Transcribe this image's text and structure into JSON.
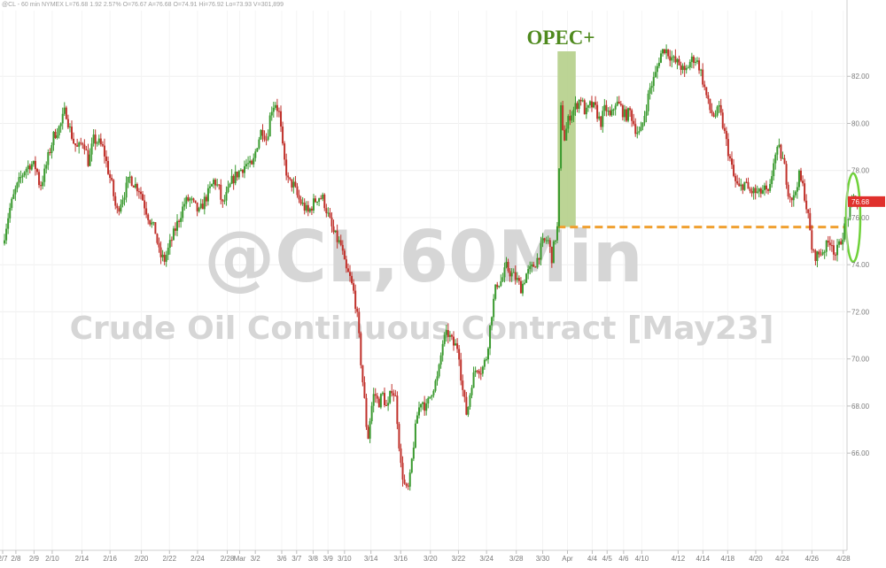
{
  "header": "@CL - 60 min  NYMEX  L=76.68  1.92  2.57%  O=76.67  A=76.68  O=74.91  Hi=76.92  Lo=73.93  V=301,899",
  "watermark": {
    "line1": "@CL,60Min",
    "line2": "Crude Oil Continuous Contract [May23]"
  },
  "annotation": "OPEC+",
  "last_price_label": "76.68",
  "colors": {
    "up": "#3a9a2f",
    "down": "#c0312b",
    "opec_band": "#b5cf8a",
    "reference_line": "#f0a030",
    "highlight_ellipse": "#6fd13a",
    "last_price_bg": "#e0302c"
  },
  "chart_data": {
    "type": "candlestick",
    "title": "",
    "xlabel": "",
    "ylabel": "",
    "ylim": [
      63,
      84
    ],
    "y_ticks": [
      66,
      68,
      70,
      72,
      74,
      76,
      78,
      80,
      82
    ],
    "y_tick_labels": [
      "66.00",
      "68.00",
      "70.00",
      "72.00",
      "74.00",
      "76.00",
      "78.00",
      "80.00",
      "82.00"
    ],
    "x_ticks": [
      "2/7",
      "2/8",
      "2/9",
      "2/10",
      "2/14",
      "2/16",
      "2/20",
      "2/22",
      "2/24",
      "2/28",
      "Mar",
      "3/2",
      "3/6",
      "3/7",
      "3/8",
      "3/9",
      "3/10",
      "3/14",
      "3/16",
      "3/20",
      "3/22",
      "3/24",
      "3/28",
      "3/30",
      "Apr",
      "4/4",
      "4/5",
      "4/6",
      "4/10",
      "4/12",
      "4/14",
      "4/18",
      "4/20",
      "4/24",
      "4/26",
      "4/28"
    ],
    "x_tick_pos": [
      0,
      0.016,
      0.038,
      0.06,
      0.096,
      0.13,
      0.168,
      0.202,
      0.236,
      0.272,
      0.287,
      0.306,
      0.338,
      0.356,
      0.376,
      0.394,
      0.414,
      0.446,
      0.482,
      0.518,
      0.552,
      0.586,
      0.622,
      0.654,
      0.684,
      0.714,
      0.732,
      0.752,
      0.774,
      0.818,
      0.848,
      0.878,
      0.912,
      0.944,
      0.98,
      1.018
    ],
    "price_path": [
      [
        0,
        74.9
      ],
      [
        0.008,
        76.3
      ],
      [
        0.016,
        77.2
      ],
      [
        0.026,
        78.0
      ],
      [
        0.034,
        78.3
      ],
      [
        0.041,
        78.1
      ],
      [
        0.045,
        77.3
      ],
      [
        0.05,
        77.8
      ],
      [
        0.056,
        78.7
      ],
      [
        0.062,
        79.5
      ],
      [
        0.07,
        79.9
      ],
      [
        0.076,
        80.6
      ],
      [
        0.081,
        79.8
      ],
      [
        0.086,
        79.2
      ],
      [
        0.091,
        78.9
      ],
      [
        0.098,
        79.3
      ],
      [
        0.104,
        78.3
      ],
      [
        0.11,
        79.3
      ],
      [
        0.116,
        79.2
      ],
      [
        0.122,
        78.9
      ],
      [
        0.127,
        78.1
      ],
      [
        0.132,
        77.4
      ],
      [
        0.138,
        76.2
      ],
      [
        0.143,
        76.7
      ],
      [
        0.148,
        77.1
      ],
      [
        0.154,
        77.7
      ],
      [
        0.16,
        77.4
      ],
      [
        0.166,
        77.2
      ],
      [
        0.172,
        76.5
      ],
      [
        0.178,
        75.9
      ],
      [
        0.185,
        75.4
      ],
      [
        0.19,
        74.4
      ],
      [
        0.196,
        74.2
      ],
      [
        0.202,
        74.8
      ],
      [
        0.208,
        75.4
      ],
      [
        0.214,
        76.0
      ],
      [
        0.22,
        76.6
      ],
      [
        0.226,
        76.8
      ],
      [
        0.232,
        76.5
      ],
      [
        0.238,
        76.2
      ],
      [
        0.244,
        76.7
      ],
      [
        0.25,
        77.1
      ],
      [
        0.256,
        77.6
      ],
      [
        0.262,
        77.2
      ],
      [
        0.266,
        76.5
      ],
      [
        0.272,
        77.0
      ],
      [
        0.278,
        77.6
      ],
      [
        0.285,
        77.9
      ],
      [
        0.29,
        78.1
      ],
      [
        0.296,
        78.3
      ],
      [
        0.302,
        78.1
      ],
      [
        0.308,
        79.1
      ],
      [
        0.314,
        79.8
      ],
      [
        0.32,
        79.3
      ],
      [
        0.325,
        80.6
      ],
      [
        0.33,
        80.9
      ],
      [
        0.335,
        80.4
      ],
      [
        0.34,
        78.6
      ],
      [
        0.346,
        77.5
      ],
      [
        0.352,
        77.4
      ],
      [
        0.358,
        76.8
      ],
      [
        0.364,
        76.5
      ],
      [
        0.37,
        76.2
      ],
      [
        0.376,
        76.6
      ],
      [
        0.382,
        76.9
      ],
      [
        0.388,
        76.8
      ],
      [
        0.394,
        76.1
      ],
      [
        0.4,
        75.4
      ],
      [
        0.406,
        75.0
      ],
      [
        0.41,
        74.8
      ],
      [
        0.415,
        73.8
      ],
      [
        0.42,
        73.5
      ],
      [
        0.426,
        72.7
      ],
      [
        0.43,
        71.6
      ],
      [
        0.434,
        69.8
      ],
      [
        0.438,
        68.3
      ],
      [
        0.442,
        66.5
      ],
      [
        0.446,
        67.8
      ],
      [
        0.45,
        68.6
      ],
      [
        0.455,
        68.1
      ],
      [
        0.46,
        68.5
      ],
      [
        0.466,
        67.8
      ],
      [
        0.471,
        68.8
      ],
      [
        0.476,
        68.3
      ],
      [
        0.482,
        65.5
      ],
      [
        0.488,
        64.4
      ],
      [
        0.492,
        64.5
      ],
      [
        0.497,
        66.2
      ],
      [
        0.502,
        67.6
      ],
      [
        0.507,
        68.3
      ],
      [
        0.513,
        67.9
      ],
      [
        0.52,
        68.7
      ],
      [
        0.527,
        69.2
      ],
      [
        0.533,
        70.7
      ],
      [
        0.539,
        71.1
      ],
      [
        0.546,
        70.6
      ],
      [
        0.552,
        70.5
      ],
      [
        0.556,
        68.9
      ],
      [
        0.562,
        67.6
      ],
      [
        0.568,
        69.0
      ],
      [
        0.574,
        69.7
      ],
      [
        0.58,
        69.5
      ],
      [
        0.586,
        70.1
      ],
      [
        0.592,
        71.9
      ],
      [
        0.598,
        73.2
      ],
      [
        0.604,
        73.3
      ],
      [
        0.61,
        73.9
      ],
      [
        0.616,
        73.6
      ],
      [
        0.622,
        73.4
      ],
      [
        0.628,
        73.0
      ],
      [
        0.634,
        73.6
      ],
      [
        0.64,
        73.8
      ],
      [
        0.647,
        74.2
      ],
      [
        0.654,
        74.9
      ],
      [
        0.66,
        75.1
      ],
      [
        0.665,
        74.3
      ],
      [
        0.669,
        75.1
      ],
      [
        0.672,
        75.6
      ],
      [
        0.676,
        80.6
      ],
      [
        0.68,
        79.3
      ],
      [
        0.686,
        80.3
      ],
      [
        0.692,
        80.6
      ],
      [
        0.7,
        81.1
      ],
      [
        0.706,
        80.4
      ],
      [
        0.712,
        80.8
      ],
      [
        0.718,
        80.6
      ],
      [
        0.724,
        80.0
      ],
      [
        0.73,
        80.7
      ],
      [
        0.736,
        80.2
      ],
      [
        0.742,
        80.9
      ],
      [
        0.748,
        80.7
      ],
      [
        0.754,
        80.3
      ],
      [
        0.76,
        80.5
      ],
      [
        0.766,
        79.8
      ],
      [
        0.772,
        79.5
      ],
      [
        0.778,
        80.5
      ],
      [
        0.784,
        81.5
      ],
      [
        0.79,
        82.0
      ],
      [
        0.796,
        82.9
      ],
      [
        0.802,
        83.2
      ],
      [
        0.808,
        82.9
      ],
      [
        0.814,
        82.6
      ],
      [
        0.82,
        82.5
      ],
      [
        0.826,
        82.1
      ],
      [
        0.832,
        82.6
      ],
      [
        0.838,
        82.8
      ],
      [
        0.844,
        82.4
      ],
      [
        0.85,
        81.5
      ],
      [
        0.856,
        80.6
      ],
      [
        0.862,
        80.3
      ],
      [
        0.868,
        80.6
      ],
      [
        0.874,
        79.6
      ],
      [
        0.88,
        78.6
      ],
      [
        0.886,
        77.6
      ],
      [
        0.892,
        77.2
      ],
      [
        0.898,
        77.5
      ],
      [
        0.904,
        77.1
      ],
      [
        0.91,
        77.1
      ],
      [
        0.916,
        77.0
      ],
      [
        0.922,
        77.2
      ],
      [
        0.928,
        76.9
      ],
      [
        0.934,
        78.5
      ],
      [
        0.94,
        78.9
      ],
      [
        0.946,
        78.3
      ],
      [
        0.952,
        77.0
      ],
      [
        0.958,
        76.8
      ],
      [
        0.964,
        77.8
      ],
      [
        0.97,
        77.2
      ],
      [
        0.976,
        75.9
      ],
      [
        0.981,
        74.4
      ],
      [
        0.987,
        74.4
      ],
      [
        0.993,
        74.6
      ],
      [
        0.998,
        74.8
      ],
      [
        1.003,
        75.1
      ],
      [
        1.008,
        74.4
      ],
      [
        1.013,
        74.8
      ],
      [
        1.019,
        75.5
      ],
      [
        1.025,
        76.2
      ],
      [
        1.031,
        76.9
      ],
      [
        1.035,
        76.5
      ]
    ],
    "opec_band_x": [
      0.672,
      0.694
    ],
    "reference_level": 75.6,
    "last_price": 76.68
  }
}
